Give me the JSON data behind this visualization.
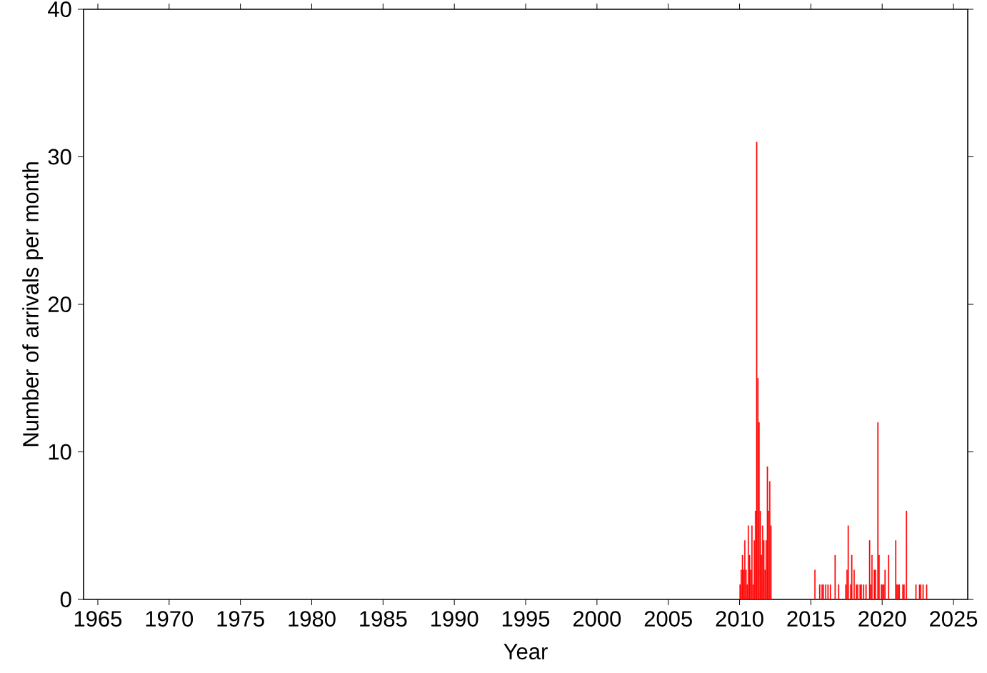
{
  "chart_data": {
    "type": "bar",
    "xlabel": "Year",
    "ylabel": "Number of arrivals per month",
    "x": [
      "2010-01",
      "2010-02",
      "2010-03",
      "2010-04",
      "2010-05",
      "2010-06",
      "2010-07",
      "2010-08",
      "2010-09",
      "2010-10",
      "2010-11",
      "2010-12",
      "2011-01",
      "2011-02",
      "2011-03",
      "2011-04",
      "2011-05",
      "2011-06",
      "2011-07",
      "2011-08",
      "2011-09",
      "2011-10",
      "2011-11",
      "2011-12",
      "2012-01",
      "2012-02",
      "2012-03",
      "2015-04",
      "2015-08",
      "2015-10",
      "2015-11",
      "2016-01",
      "2016-03",
      "2016-05",
      "2016-09",
      "2016-12",
      "2017-06",
      "2017-07",
      "2017-08",
      "2017-10",
      "2017-11",
      "2018-01",
      "2018-03",
      "2018-04",
      "2018-06",
      "2018-07",
      "2018-09",
      "2018-11",
      "2019-02",
      "2019-03",
      "2019-04",
      "2019-06",
      "2019-07",
      "2019-09",
      "2019-10",
      "2019-12",
      "2020-01",
      "2020-02",
      "2020-03",
      "2020-06",
      "2020-12",
      "2021-01",
      "2021-02",
      "2021-03",
      "2021-06",
      "2021-07",
      "2021-09",
      "2022-05",
      "2022-08",
      "2022-09",
      "2022-11",
      "2023-02"
    ],
    "values": [
      1,
      2,
      3,
      2,
      4,
      2,
      1,
      5,
      3,
      2,
      5,
      1,
      4,
      6,
      31,
      15,
      12,
      6,
      3,
      5,
      4,
      2,
      4,
      9,
      6,
      8,
      5,
      2,
      1,
      1,
      1,
      1,
      1,
      1,
      3,
      1,
      1,
      2,
      5,
      1,
      3,
      2,
      1,
      1,
      1,
      1,
      1,
      1,
      4,
      1,
      3,
      2,
      2,
      12,
      3,
      1,
      1,
      1,
      2,
      3,
      4,
      1,
      1,
      1,
      1,
      1,
      6,
      1,
      1,
      1,
      1,
      1
    ],
    "color": "#ff0000",
    "xlim": [
      "1964-01",
      "2025-12"
    ],
    "xticks": [
      "1965",
      "1970",
      "1975",
      "1980",
      "1985",
      "1990",
      "1995",
      "2000",
      "2005",
      "2010",
      "2015",
      "2020",
      "2025"
    ],
    "ylim": [
      0,
      40
    ],
    "yticks": [
      0,
      10,
      20,
      30,
      40
    ]
  }
}
